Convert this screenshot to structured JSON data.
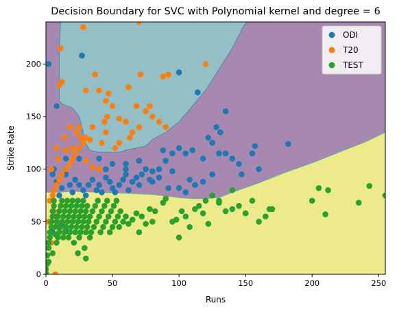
{
  "chart_data": {
    "type": "scatter",
    "title": "Decision Boundary for SVC with Polynomial kernel and degree = 6",
    "xlabel": "Runs",
    "ylabel": "Strike Rate",
    "xlim": [
      0,
      255
    ],
    "ylim": [
      0,
      240
    ],
    "xticks": [
      0,
      50,
      100,
      150,
      200,
      250
    ],
    "yticks": [
      0,
      50,
      100,
      150,
      200
    ],
    "grid": false,
    "legend_position": "top-right",
    "regions": [
      {
        "class": "TEST",
        "color": "#ecea8a",
        "boundary_upper": [
          [
            0,
            78
          ],
          [
            10,
            78
          ],
          [
            20,
            79
          ],
          [
            40,
            78
          ],
          [
            60,
            77
          ],
          [
            80,
            76
          ],
          [
            100,
            73
          ],
          [
            110,
            72
          ],
          [
            120,
            72
          ],
          [
            130,
            73
          ],
          [
            140,
            78
          ],
          [
            160,
            87
          ],
          [
            180,
            97
          ],
          [
            200,
            106
          ],
          [
            220,
            116
          ],
          [
            240,
            126
          ],
          [
            255,
            135
          ]
        ]
      },
      {
        "class": "ODI",
        "color": "#a688b1"
      },
      {
        "class": "T20",
        "color": "#94bfc6",
        "polygon": [
          [
            11,
            240
          ],
          [
            10,
            215
          ],
          [
            10,
            165
          ],
          [
            12,
            162
          ],
          [
            20,
            158
          ],
          [
            25,
            150
          ],
          [
            28,
            135
          ],
          [
            30,
            124
          ],
          [
            33,
            118
          ],
          [
            40,
            116
          ],
          [
            55,
            116
          ],
          [
            60,
            118
          ],
          [
            75,
            122
          ],
          [
            80,
            128
          ],
          [
            90,
            135
          ],
          [
            100,
            145
          ],
          [
            110,
            160
          ],
          [
            120,
            175
          ],
          [
            130,
            195
          ],
          [
            140,
            215
          ],
          [
            148,
            235
          ],
          [
            151,
            240
          ]
        ]
      }
    ],
    "series": [
      {
        "name": "ODI",
        "color": "#1f77b4",
        "points": [
          [
            2,
            200
          ],
          [
            8,
            160
          ],
          [
            27,
            208
          ],
          [
            100,
            192
          ],
          [
            114,
            173
          ],
          [
            128,
            140
          ],
          [
            131,
            135
          ],
          [
            135,
            155
          ],
          [
            157,
            122
          ],
          [
            155,
            115
          ],
          [
            182,
            124
          ],
          [
            147,
            95
          ],
          [
            160,
            100
          ],
          [
            140,
            110
          ],
          [
            130,
            115
          ],
          [
            125,
            125
          ],
          [
            122,
            130
          ],
          [
            110,
            118
          ],
          [
            100,
            120
          ],
          [
            95,
            115
          ],
          [
            90,
            108
          ],
          [
            85,
            100
          ],
          [
            80,
            98
          ],
          [
            78,
            90
          ],
          [
            75,
            100
          ],
          [
            72,
            95
          ],
          [
            70,
            85
          ],
          [
            68,
            92
          ],
          [
            65,
            88
          ],
          [
            62,
            80
          ],
          [
            60,
            95
          ],
          [
            58,
            90
          ],
          [
            55,
            85
          ],
          [
            52,
            78
          ],
          [
            50,
            82
          ],
          [
            48,
            88
          ],
          [
            45,
            92
          ],
          [
            42,
            78
          ],
          [
            40,
            85
          ],
          [
            38,
            80
          ],
          [
            35,
            90
          ],
          [
            32,
            85
          ],
          [
            30,
            75
          ],
          [
            28,
            80
          ],
          [
            25,
            85
          ],
          [
            22,
            90
          ],
          [
            20,
            78
          ],
          [
            18,
            85
          ],
          [
            15,
            95
          ],
          [
            12,
            82
          ],
          [
            10,
            75
          ],
          [
            8,
            88
          ],
          [
            6,
            100
          ],
          [
            5,
            95
          ],
          [
            15,
            110
          ],
          [
            25,
            110
          ],
          [
            40,
            110
          ],
          [
            50,
            105
          ],
          [
            60,
            100
          ],
          [
            70,
            108
          ],
          [
            88,
            118
          ],
          [
            105,
            115
          ],
          [
            118,
            110
          ],
          [
            135,
            115
          ],
          [
            145,
            105
          ],
          [
            100,
            82
          ],
          [
            105,
            78
          ],
          [
            112,
            85
          ],
          [
            118,
            88
          ],
          [
            125,
            95
          ],
          [
            108,
            90
          ],
          [
            95,
            98
          ],
          [
            85,
            92
          ],
          [
            92,
            82
          ],
          [
            80,
            88
          ],
          [
            60,
            105
          ],
          [
            45,
            100
          ],
          [
            10,
            45
          ],
          [
            15,
            42
          ],
          [
            8,
            55
          ],
          [
            12,
            48
          ],
          [
            5,
            40
          ],
          [
            20,
            50
          ]
        ]
      },
      {
        "name": "T20",
        "color": "#ff7f0e",
        "points": [
          [
            28,
            235
          ],
          [
            70,
            240
          ],
          [
            7,
            0
          ],
          [
            11,
            215
          ],
          [
            120,
            200
          ],
          [
            37,
            190
          ],
          [
            62,
            178
          ],
          [
            71,
            190
          ],
          [
            88,
            188
          ],
          [
            92,
            190
          ],
          [
            47,
            172
          ],
          [
            40,
            175
          ],
          [
            45,
            165
          ],
          [
            12,
            183
          ],
          [
            10,
            180
          ],
          [
            30,
            175
          ],
          [
            50,
            160
          ],
          [
            68,
            160
          ],
          [
            75,
            155
          ],
          [
            80,
            150
          ],
          [
            85,
            145
          ],
          [
            90,
            140
          ],
          [
            70,
            140
          ],
          [
            60,
            145
          ],
          [
            55,
            148
          ],
          [
            46,
            150
          ],
          [
            35,
            140
          ],
          [
            30,
            130
          ],
          [
            28,
            125
          ],
          [
            25,
            120
          ],
          [
            22,
            115
          ],
          [
            20,
            110
          ],
          [
            18,
            105
          ],
          [
            15,
            100
          ],
          [
            12,
            95
          ],
          [
            10,
            90
          ],
          [
            8,
            85
          ],
          [
            6,
            80
          ],
          [
            5,
            75
          ],
          [
            3,
            70
          ],
          [
            30,
            108
          ],
          [
            35,
            102
          ],
          [
            40,
            100
          ],
          [
            15,
            118
          ],
          [
            20,
            120
          ],
          [
            26,
            130
          ],
          [
            33,
            128
          ],
          [
            45,
            135
          ],
          [
            55,
            125
          ],
          [
            63,
            130
          ],
          [
            4,
            100
          ],
          [
            65,
            135
          ],
          [
            78,
            160
          ],
          [
            44,
            145
          ],
          [
            42,
            125
          ],
          [
            52,
            120
          ],
          [
            23,
            135
          ],
          [
            14,
            130
          ],
          [
            18,
            140
          ],
          [
            25,
            140
          ],
          [
            9,
            110
          ],
          [
            2,
            50
          ],
          [
            4,
            30
          ],
          [
            6,
            60
          ],
          [
            8,
            120
          ]
        ]
      },
      {
        "name": "TEST",
        "color": "#2ca02c",
        "points": [
          [
            0,
            1
          ],
          [
            0,
            5
          ],
          [
            1,
            10
          ],
          [
            1,
            18
          ],
          [
            2,
            25
          ],
          [
            2,
            30
          ],
          [
            3,
            35
          ],
          [
            3,
            40
          ],
          [
            4,
            45
          ],
          [
            4,
            50
          ],
          [
            5,
            55
          ],
          [
            5,
            60
          ],
          [
            6,
            65
          ],
          [
            6,
            70
          ],
          [
            7,
            38
          ],
          [
            7,
            45
          ],
          [
            8,
            30
          ],
          [
            8,
            50
          ],
          [
            9,
            35
          ],
          [
            9,
            55
          ],
          [
            10,
            40
          ],
          [
            10,
            60
          ],
          [
            11,
            45
          ],
          [
            11,
            65
          ],
          [
            12,
            50
          ],
          [
            12,
            70
          ],
          [
            13,
            35
          ],
          [
            13,
            55
          ],
          [
            14,
            40
          ],
          [
            14,
            60
          ],
          [
            15,
            45
          ],
          [
            15,
            65
          ],
          [
            16,
            50
          ],
          [
            16,
            70
          ],
          [
            17,
            35
          ],
          [
            17,
            55
          ],
          [
            18,
            40
          ],
          [
            18,
            60
          ],
          [
            19,
            45
          ],
          [
            19,
            65
          ],
          [
            20,
            50
          ],
          [
            20,
            70
          ],
          [
            21,
            30
          ],
          [
            21,
            55
          ],
          [
            22,
            40
          ],
          [
            22,
            60
          ],
          [
            23,
            45
          ],
          [
            23,
            65
          ],
          [
            24,
            50
          ],
          [
            24,
            70
          ],
          [
            25,
            35
          ],
          [
            25,
            55
          ],
          [
            26,
            40
          ],
          [
            26,
            60
          ],
          [
            27,
            45
          ],
          [
            27,
            65
          ],
          [
            28,
            50
          ],
          [
            28,
            70
          ],
          [
            29,
            25
          ],
          [
            29,
            55
          ],
          [
            30,
            40
          ],
          [
            30,
            60
          ],
          [
            31,
            45
          ],
          [
            31,
            65
          ],
          [
            32,
            50
          ],
          [
            33,
            35
          ],
          [
            33,
            55
          ],
          [
            34,
            40
          ],
          [
            35,
            60
          ],
          [
            36,
            45
          ],
          [
            37,
            65
          ],
          [
            38,
            50
          ],
          [
            39,
            70
          ],
          [
            40,
            55
          ],
          [
            41,
            40
          ],
          [
            42,
            60
          ],
          [
            43,
            45
          ],
          [
            44,
            65
          ],
          [
            45,
            50
          ],
          [
            46,
            70
          ],
          [
            47,
            55
          ],
          [
            48,
            40
          ],
          [
            49,
            60
          ],
          [
            50,
            45
          ],
          [
            51,
            65
          ],
          [
            52,
            50
          ],
          [
            53,
            70
          ],
          [
            54,
            55
          ],
          [
            55,
            45
          ],
          [
            56,
            60
          ],
          [
            58,
            50
          ],
          [
            60,
            55
          ],
          [
            62,
            48
          ],
          [
            65,
            52
          ],
          [
            68,
            58
          ],
          [
            70,
            40
          ],
          [
            72,
            55
          ],
          [
            75,
            48
          ],
          [
            78,
            62
          ],
          [
            80,
            50
          ],
          [
            82,
            60
          ],
          [
            88,
            68
          ],
          [
            90,
            72
          ],
          [
            95,
            50
          ],
          [
            98,
            52
          ],
          [
            100,
            35
          ],
          [
            102,
            60
          ],
          [
            105,
            55
          ],
          [
            108,
            45
          ],
          [
            112,
            62
          ],
          [
            115,
            65
          ],
          [
            118,
            58
          ],
          [
            120,
            70
          ],
          [
            122,
            48
          ],
          [
            125,
            75
          ],
          [
            130,
            68
          ],
          [
            135,
            60
          ],
          [
            140,
            62
          ],
          [
            145,
            65
          ],
          [
            150,
            58
          ],
          [
            155,
            70
          ],
          [
            160,
            50
          ],
          [
            165,
            55
          ],
          [
            168,
            62
          ],
          [
            170,
            62
          ],
          [
            130,
            70
          ],
          [
            140,
            80
          ],
          [
            200,
            70
          ],
          [
            205,
            82
          ],
          [
            210,
            57
          ],
          [
            212,
            80
          ],
          [
            235,
            68
          ],
          [
            243,
            84
          ],
          [
            255,
            75
          ],
          [
            24,
            20
          ],
          [
            30,
            15
          ],
          [
            5,
            20
          ],
          [
            2,
            12
          ]
        ]
      }
    ]
  }
}
